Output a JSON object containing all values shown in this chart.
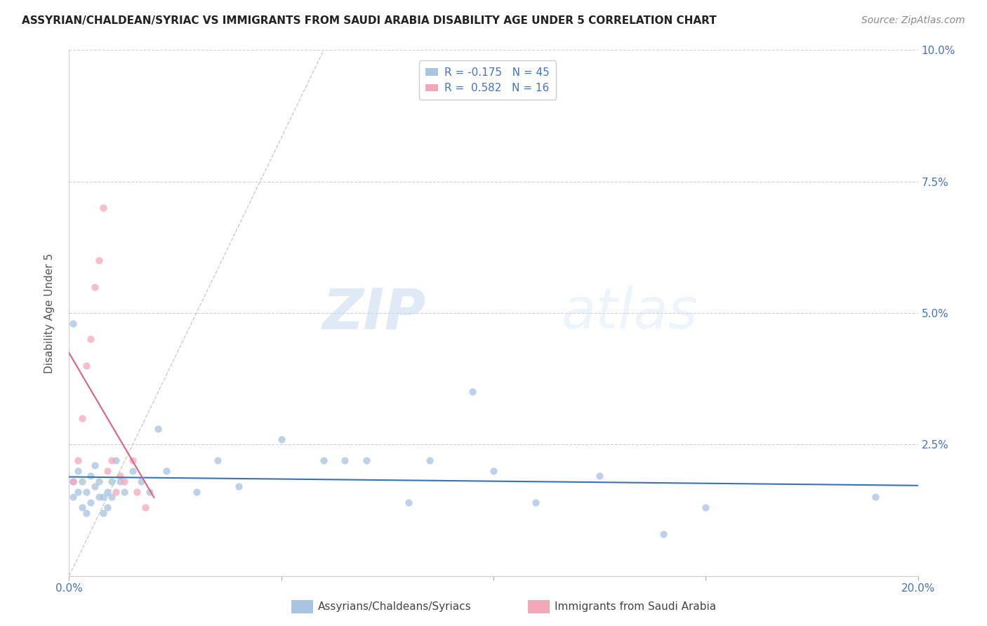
{
  "title": "ASSYRIAN/CHALDEAN/SYRIAC VS IMMIGRANTS FROM SAUDI ARABIA DISABILITY AGE UNDER 5 CORRELATION CHART",
  "source": "Source: ZipAtlas.com",
  "ylabel": "Disability Age Under 5",
  "xlim": [
    0.0,
    0.2
  ],
  "ylim": [
    0.0,
    0.1
  ],
  "yticks": [
    0.0,
    0.025,
    0.05,
    0.075,
    0.1
  ],
  "ytick_labels": [
    "",
    "2.5%",
    "5.0%",
    "7.5%",
    "10.0%"
  ],
  "xticks": [
    0.0,
    0.05,
    0.1,
    0.15,
    0.2
  ],
  "xtick_labels": [
    "0.0%",
    "",
    "",
    "",
    "20.0%"
  ],
  "blue_R": -0.175,
  "blue_N": 45,
  "pink_R": 0.582,
  "pink_N": 16,
  "blue_color": "#a8c4e0",
  "pink_color": "#f4a7b9",
  "blue_line_color": "#3a72b8",
  "pink_line_color": "#e06080",
  "trendline_dashed_color": "#cccccc",
  "legend_label_blue": "Assyrians/Chaldeans/Syriacs",
  "legend_label_pink": "Immigrants from Saudi Arabia",
  "watermark_zip": "ZIP",
  "watermark_atlas": "atlas",
  "background_color": "#ffffff",
  "blue_x": [
    0.001,
    0.001,
    0.002,
    0.002,
    0.003,
    0.003,
    0.004,
    0.004,
    0.005,
    0.005,
    0.006,
    0.006,
    0.007,
    0.007,
    0.008,
    0.008,
    0.009,
    0.009,
    0.01,
    0.01,
    0.011,
    0.012,
    0.013,
    0.015,
    0.017,
    0.019,
    0.021,
    0.023,
    0.03,
    0.035,
    0.04,
    0.05,
    0.06,
    0.065,
    0.07,
    0.08,
    0.085,
    0.095,
    0.1,
    0.11,
    0.125,
    0.14,
    0.15,
    0.19,
    0.001
  ],
  "blue_y": [
    0.018,
    0.015,
    0.02,
    0.016,
    0.018,
    0.013,
    0.016,
    0.012,
    0.019,
    0.014,
    0.021,
    0.017,
    0.015,
    0.018,
    0.015,
    0.012,
    0.016,
    0.013,
    0.018,
    0.015,
    0.022,
    0.018,
    0.016,
    0.02,
    0.018,
    0.016,
    0.028,
    0.02,
    0.016,
    0.022,
    0.017,
    0.026,
    0.022,
    0.022,
    0.022,
    0.014,
    0.022,
    0.035,
    0.02,
    0.014,
    0.019,
    0.008,
    0.013,
    0.015,
    0.048
  ],
  "pink_x": [
    0.001,
    0.002,
    0.003,
    0.004,
    0.005,
    0.006,
    0.007,
    0.008,
    0.009,
    0.01,
    0.011,
    0.012,
    0.013,
    0.015,
    0.016,
    0.018
  ],
  "pink_y": [
    0.018,
    0.022,
    0.03,
    0.04,
    0.045,
    0.055,
    0.06,
    0.07,
    0.02,
    0.022,
    0.016,
    0.019,
    0.018,
    0.022,
    0.016,
    0.013
  ]
}
